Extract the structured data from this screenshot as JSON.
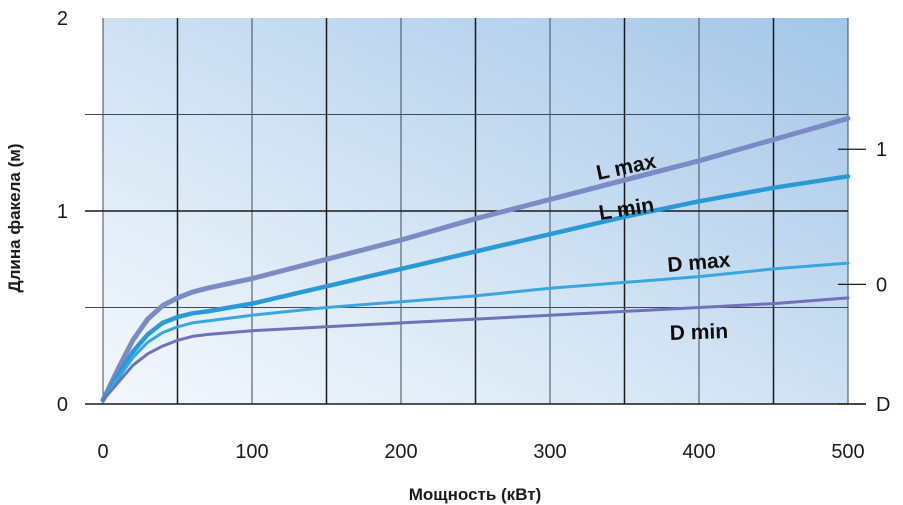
{
  "chart_data": {
    "type": "line",
    "title": "",
    "xlabel": "Мощность (кВт)",
    "ylabel": "Длина факела (м)",
    "xlim": [
      0,
      500
    ],
    "ylim": [
      0,
      2
    ],
    "x_ticks": [
      "0",
      "100",
      "200",
      "300",
      "400",
      "500"
    ],
    "y_ticks": [
      "0",
      "1",
      "2"
    ],
    "right_axis_ticks": [
      "1",
      "0",
      "D"
    ],
    "grid": true,
    "x": [
      0,
      10,
      20,
      30,
      40,
      50,
      60,
      70,
      100,
      150,
      200,
      250,
      300,
      350,
      400,
      450,
      500
    ],
    "series": [
      {
        "name": "L max",
        "color": "#7b8cc4",
        "width": 5,
        "values": [
          0.02,
          0.18,
          0.33,
          0.44,
          0.51,
          0.55,
          0.58,
          0.6,
          0.65,
          0.75,
          0.85,
          0.96,
          1.06,
          1.16,
          1.26,
          1.37,
          1.48
        ]
      },
      {
        "name": "L min",
        "color": "#2a9ad6",
        "width": 4.5,
        "values": [
          0.02,
          0.15,
          0.27,
          0.36,
          0.42,
          0.45,
          0.47,
          0.48,
          0.52,
          0.61,
          0.7,
          0.79,
          0.88,
          0.97,
          1.05,
          1.12,
          1.18
        ]
      },
      {
        "name": "D max",
        "color": "#3aa6e0",
        "width": 3,
        "values": [
          0.02,
          0.13,
          0.24,
          0.32,
          0.37,
          0.4,
          0.42,
          0.43,
          0.46,
          0.5,
          0.53,
          0.56,
          0.6,
          0.63,
          0.66,
          0.7,
          0.73
        ]
      },
      {
        "name": "D min",
        "color": "#6f72b8",
        "width": 3,
        "values": [
          0.02,
          0.11,
          0.2,
          0.26,
          0.3,
          0.33,
          0.35,
          0.36,
          0.38,
          0.4,
          0.42,
          0.44,
          0.46,
          0.48,
          0.5,
          0.52,
          0.55
        ]
      }
    ]
  }
}
